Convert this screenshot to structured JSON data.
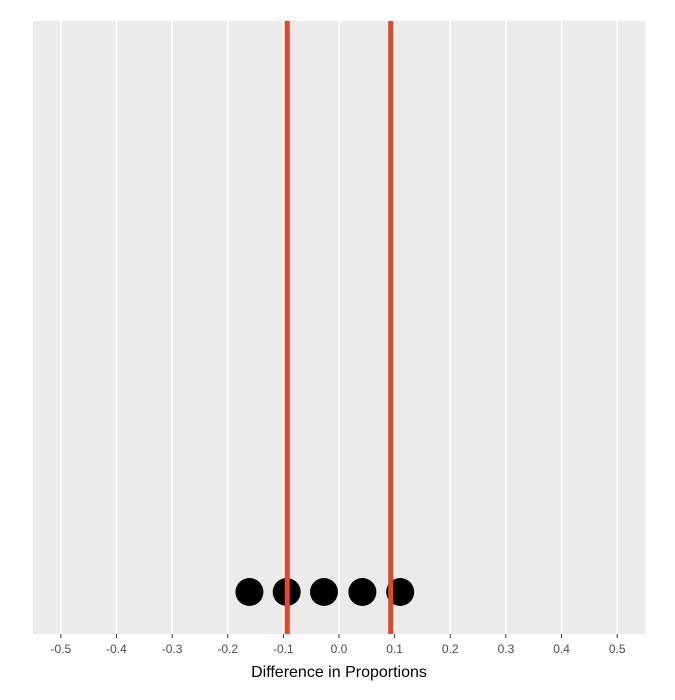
{
  "chart_data": {
    "type": "scatter",
    "title": "",
    "xlabel": "Difference in Proportions",
    "ylabel": "",
    "xlim": [
      -0.55,
      0.55
    ],
    "x_ticks": [
      -0.5,
      -0.4,
      -0.3,
      -0.2,
      -0.1,
      0.0,
      0.1,
      0.2,
      0.3,
      0.4,
      0.5
    ],
    "x_tick_labels": [
      "-0.5",
      "-0.4",
      "-0.3",
      "-0.2",
      "-0.1",
      "0.0",
      "0.1",
      "0.2",
      "0.3",
      "0.4",
      "0.5"
    ],
    "grid": "vertical major gridlines",
    "series": [
      {
        "values": [
          {
            "x": -0.161,
            "y": 0
          },
          {
            "x": -0.094,
            "y": 0
          },
          {
            "x": -0.027,
            "y": 0
          },
          {
            "x": 0.042,
            "y": 0
          },
          {
            "x": 0.11,
            "y": 0
          }
        ]
      }
    ],
    "reference_lines": [
      {
        "orientation": "vertical",
        "x": -0.093
      },
      {
        "orientation": "vertical",
        "x": 0.093
      }
    ],
    "colors": {
      "panel_background": "#ebebeb",
      "gridline": "#ffffff",
      "points": "#000000",
      "reference_line": "#e8452c"
    }
  }
}
